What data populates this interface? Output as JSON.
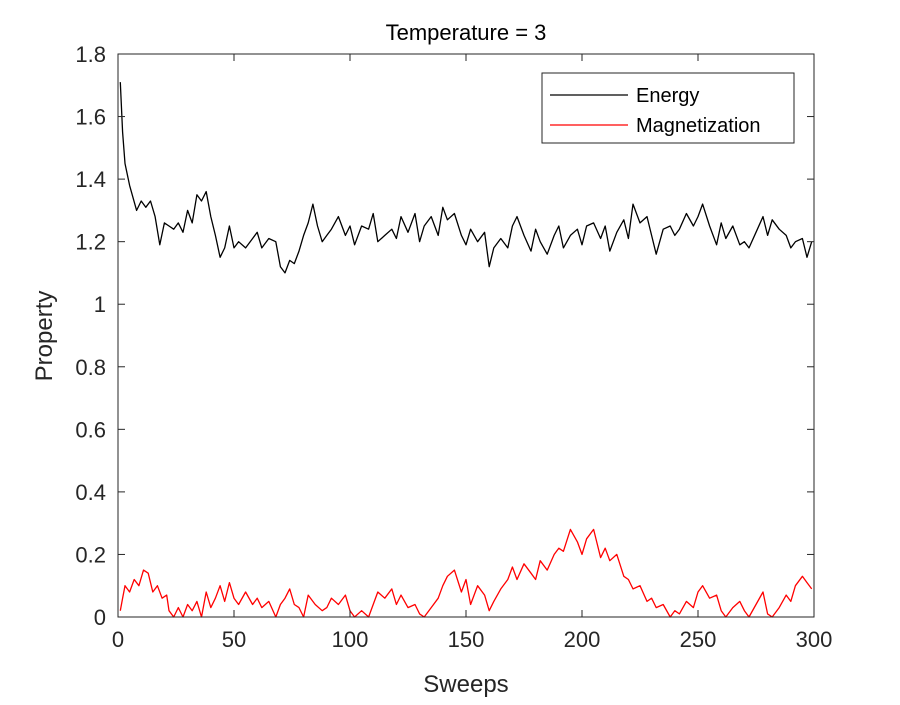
{
  "chart_data": {
    "type": "line",
    "title": "Temperature = 3",
    "xlabel": "Sweeps",
    "ylabel": "Property",
    "xlim": [
      0,
      300
    ],
    "ylim": [
      0,
      1.8
    ],
    "xticks": [
      0,
      50,
      100,
      150,
      200,
      250,
      300
    ],
    "yticks": [
      0,
      0.2,
      0.4,
      0.6,
      0.8,
      1,
      1.2,
      1.4,
      1.6,
      1.8
    ],
    "xtick_labels": [
      "0",
      "50",
      "100",
      "150",
      "200",
      "250",
      "300"
    ],
    "ytick_labels": [
      "0",
      "0.2",
      "0.4",
      "0.6",
      "0.8",
      "1",
      "1.2",
      "1.4",
      "1.6",
      "1.8"
    ],
    "grid": false,
    "legend_position": "top-right",
    "series": [
      {
        "name": "Energy",
        "color": "#000000",
        "x": [
          1,
          2,
          3,
          5,
          8,
          10,
          12,
          14,
          16,
          18,
          20,
          22,
          24,
          26,
          28,
          30,
          32,
          34,
          36,
          38,
          40,
          42,
          44,
          46,
          48,
          50,
          52,
          55,
          58,
          60,
          62,
          65,
          68,
          70,
          72,
          74,
          76,
          78,
          80,
          82,
          84,
          86,
          88,
          90,
          92,
          95,
          98,
          100,
          102,
          105,
          108,
          110,
          112,
          115,
          118,
          120,
          122,
          125,
          128,
          130,
          132,
          135,
          138,
          140,
          142,
          145,
          148,
          150,
          152,
          155,
          158,
          160,
          162,
          165,
          168,
          170,
          172,
          175,
          178,
          180,
          182,
          185,
          188,
          190,
          192,
          195,
          198,
          200,
          202,
          205,
          208,
          210,
          212,
          215,
          218,
          220,
          222,
          225,
          228,
          230,
          232,
          235,
          238,
          240,
          242,
          245,
          248,
          250,
          252,
          255,
          258,
          260,
          262,
          265,
          268,
          270,
          272,
          275,
          278,
          280,
          282,
          285,
          288,
          290,
          292,
          295,
          297,
          299
        ],
        "values": [
          1.71,
          1.55,
          1.45,
          1.38,
          1.3,
          1.33,
          1.31,
          1.33,
          1.28,
          1.19,
          1.26,
          1.25,
          1.24,
          1.26,
          1.23,
          1.3,
          1.26,
          1.35,
          1.33,
          1.36,
          1.28,
          1.22,
          1.15,
          1.18,
          1.25,
          1.18,
          1.2,
          1.18,
          1.21,
          1.23,
          1.18,
          1.21,
          1.2,
          1.12,
          1.1,
          1.14,
          1.13,
          1.17,
          1.22,
          1.26,
          1.32,
          1.25,
          1.2,
          1.22,
          1.24,
          1.28,
          1.22,
          1.25,
          1.19,
          1.25,
          1.24,
          1.29,
          1.2,
          1.22,
          1.24,
          1.21,
          1.28,
          1.23,
          1.29,
          1.2,
          1.25,
          1.28,
          1.22,
          1.31,
          1.27,
          1.29,
          1.22,
          1.19,
          1.24,
          1.2,
          1.23,
          1.12,
          1.18,
          1.21,
          1.18,
          1.25,
          1.28,
          1.22,
          1.17,
          1.24,
          1.2,
          1.16,
          1.22,
          1.25,
          1.18,
          1.22,
          1.24,
          1.19,
          1.25,
          1.26,
          1.21,
          1.25,
          1.17,
          1.23,
          1.27,
          1.21,
          1.32,
          1.26,
          1.28,
          1.22,
          1.16,
          1.24,
          1.25,
          1.22,
          1.24,
          1.29,
          1.25,
          1.28,
          1.32,
          1.25,
          1.19,
          1.26,
          1.21,
          1.25,
          1.19,
          1.2,
          1.18,
          1.23,
          1.28,
          1.22,
          1.27,
          1.24,
          1.22,
          1.18,
          1.2,
          1.21,
          1.15,
          1.2
        ]
      },
      {
        "name": "Magnetization",
        "color": "#ff0000",
        "x": [
          1,
          2,
          3,
          5,
          7,
          9,
          11,
          13,
          15,
          17,
          19,
          21,
          22,
          24,
          26,
          28,
          30,
          32,
          34,
          36,
          38,
          40,
          42,
          44,
          46,
          48,
          50,
          52,
          55,
          58,
          60,
          62,
          65,
          68,
          70,
          72,
          74,
          76,
          78,
          80,
          82,
          85,
          88,
          90,
          92,
          95,
          98,
          100,
          102,
          105,
          108,
          110,
          112,
          115,
          118,
          120,
          122,
          125,
          128,
          130,
          132,
          135,
          138,
          140,
          142,
          145,
          148,
          150,
          152,
          155,
          158,
          160,
          162,
          165,
          168,
          170,
          172,
          175,
          178,
          180,
          182,
          185,
          188,
          190,
          192,
          195,
          198,
          200,
          202,
          205,
          208,
          210,
          212,
          215,
          218,
          220,
          222,
          225,
          228,
          230,
          232,
          235,
          238,
          240,
          242,
          245,
          248,
          250,
          252,
          255,
          258,
          260,
          262,
          265,
          268,
          270,
          272,
          275,
          278,
          280,
          282,
          285,
          288,
          290,
          292,
          295,
          297,
          299
        ],
        "values": [
          0.02,
          0.06,
          0.1,
          0.08,
          0.12,
          0.1,
          0.15,
          0.14,
          0.08,
          0.1,
          0.06,
          0.07,
          0.02,
          0.0,
          0.03,
          0.0,
          0.04,
          0.02,
          0.05,
          0.0,
          0.08,
          0.03,
          0.06,
          0.1,
          0.05,
          0.11,
          0.06,
          0.04,
          0.08,
          0.04,
          0.06,
          0.03,
          0.05,
          0.0,
          0.04,
          0.06,
          0.09,
          0.04,
          0.03,
          0.0,
          0.07,
          0.04,
          0.02,
          0.03,
          0.06,
          0.04,
          0.07,
          0.02,
          0.0,
          0.02,
          0.0,
          0.04,
          0.08,
          0.06,
          0.09,
          0.04,
          0.07,
          0.03,
          0.04,
          0.01,
          0.0,
          0.03,
          0.06,
          0.1,
          0.13,
          0.15,
          0.08,
          0.12,
          0.04,
          0.1,
          0.07,
          0.02,
          0.05,
          0.09,
          0.12,
          0.16,
          0.12,
          0.17,
          0.14,
          0.12,
          0.18,
          0.15,
          0.2,
          0.22,
          0.21,
          0.28,
          0.24,
          0.2,
          0.25,
          0.28,
          0.19,
          0.22,
          0.18,
          0.2,
          0.13,
          0.12,
          0.09,
          0.1,
          0.05,
          0.06,
          0.03,
          0.04,
          0.0,
          0.02,
          0.01,
          0.05,
          0.03,
          0.08,
          0.1,
          0.06,
          0.07,
          0.02,
          0.0,
          0.03,
          0.05,
          0.02,
          0.0,
          0.04,
          0.08,
          0.01,
          0.0,
          0.03,
          0.07,
          0.05,
          0.1,
          0.13,
          0.11,
          0.09
        ]
      }
    ]
  }
}
